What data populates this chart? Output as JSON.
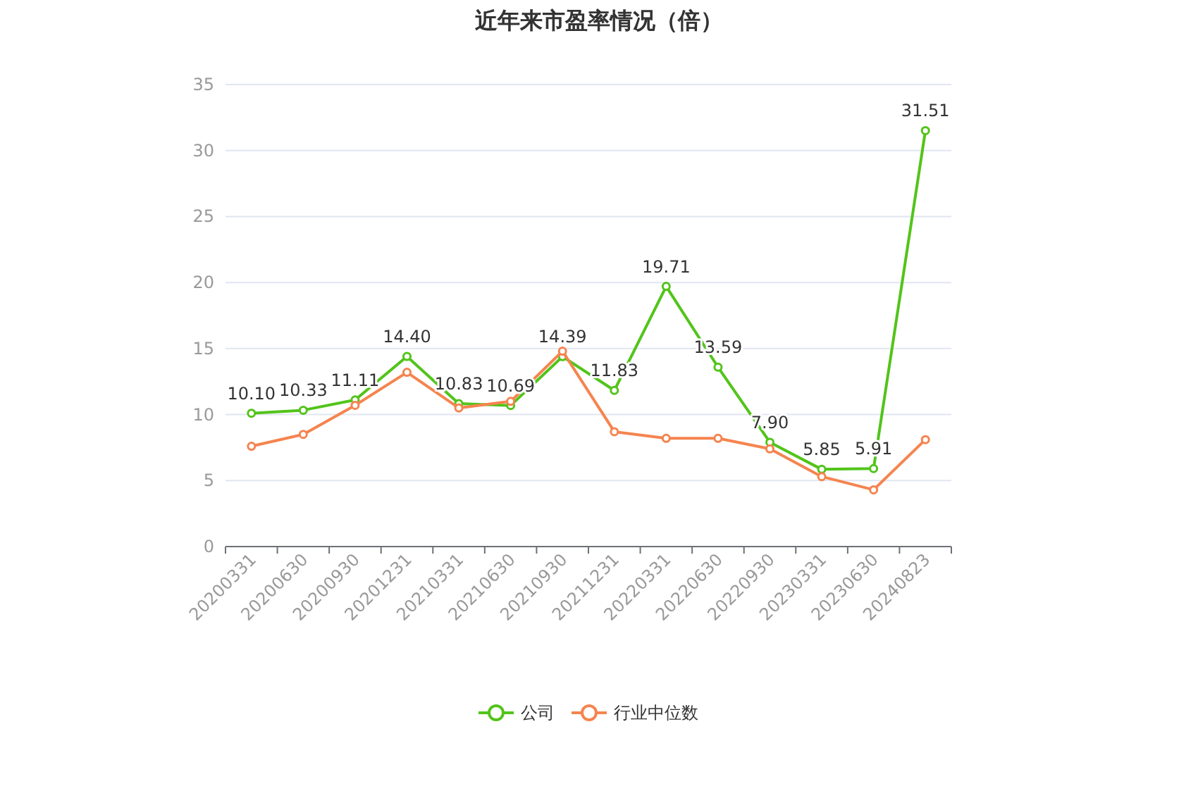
{
  "chart_data": {
    "type": "line",
    "title": "近年来市盈率情况（倍）",
    "categories": [
      "20200331",
      "20200630",
      "20200930",
      "20201231",
      "20210331",
      "20210630",
      "20210930",
      "20211231",
      "20220331",
      "20220630",
      "20220930",
      "20230331",
      "20230630",
      "20240823"
    ],
    "series": [
      {
        "name": "公司",
        "color": "#52c41a",
        "values": [
          10.1,
          10.33,
          11.11,
          14.4,
          10.83,
          10.69,
          14.39,
          11.83,
          19.71,
          13.59,
          7.9,
          5.85,
          5.91,
          31.51
        ],
        "value_labels": [
          "10.10",
          "10.33",
          "11.11",
          "14.40",
          "10.83",
          "10.69",
          "14.39",
          "11.83",
          "19.71",
          "13.59",
          "7.90",
          "5.85",
          "5.91",
          "31.51"
        ]
      },
      {
        "name": "行业中位数",
        "color": "#f5844f",
        "values": [
          7.6,
          8.5,
          10.7,
          13.2,
          10.5,
          11.0,
          14.8,
          8.7,
          8.2,
          8.2,
          7.4,
          5.3,
          4.3,
          8.1
        ]
      }
    ],
    "ylim": [
      0,
      35
    ],
    "yticks": [
      0,
      5,
      10,
      15,
      20,
      25,
      30,
      35
    ],
    "grid": "y",
    "legend": "bottom",
    "marker": "circle",
    "line_style": "solid"
  }
}
